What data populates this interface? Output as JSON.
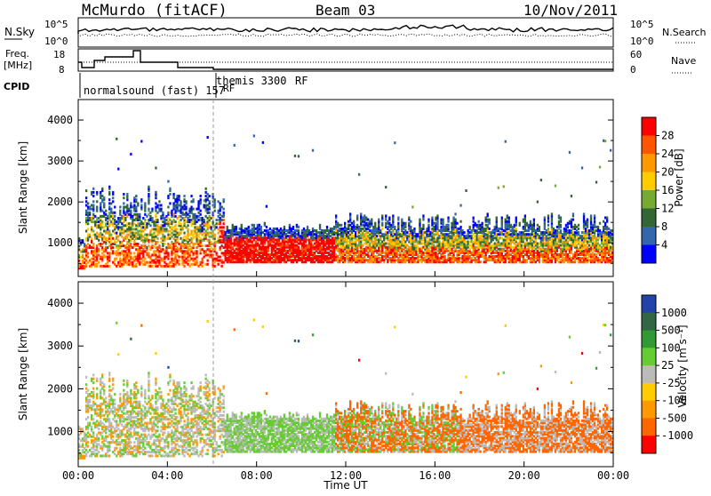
{
  "header": {
    "station": "McMurdo (fitACF)",
    "beam": "Beam 03",
    "date": "10/Nov/2011"
  },
  "top_panel": {
    "left_label": "N.Sky",
    "left_ticks": [
      "10^5",
      "10^0"
    ],
    "right_label": "N.Search",
    "right_ticks": [
      "10^5",
      "10^0"
    ]
  },
  "freq_panel": {
    "left_label_1": "Freq.",
    "left_label_2": "[MHz]",
    "left_ticks": [
      "18",
      "8"
    ],
    "right_label": "Nave",
    "right_ticks": [
      "60",
      "0"
    ]
  },
  "cpid": {
    "label": "CPID",
    "mode_1": "normalsound (fast) 157",
    "mode_1_rf": "RF",
    "mode_2": "themis 3300",
    "mode_2_rf": "RF"
  },
  "chart_data": [
    {
      "type": "heatmap",
      "name": "power",
      "ylabel": "Slant Range [km]",
      "ylim": [
        180,
        4500
      ],
      "yticks": [
        "1000",
        "2000",
        "3000",
        "4000"
      ],
      "xlim": [
        "00:00",
        "24:00"
      ],
      "colorbar": {
        "label": "Power [dB]",
        "ticks": [
          "28",
          "24",
          "20",
          "16",
          "12",
          "8",
          "4"
        ],
        "colors": [
          "#ff0000",
          "#ff5500",
          "#ff9900",
          "#ffcc00",
          "#77aa33",
          "#336633",
          "#3366aa",
          "#0000ff"
        ]
      }
    },
    {
      "type": "heatmap",
      "name": "velocity",
      "ylabel": "Slant Range [km]",
      "ylim": [
        180,
        4500
      ],
      "yticks": [
        "1000",
        "2000",
        "3000",
        "4000"
      ],
      "xlim": [
        "00:00",
        "24:00"
      ],
      "colorbar": {
        "label": "Velocity [m s⁻¹]",
        "ticks": [
          "1000",
          "500",
          "100",
          "25",
          "-25",
          "-100",
          "-500",
          "-1000"
        ],
        "colors": [
          "#2244aa",
          "#336644",
          "#339933",
          "#66cc33",
          "#bbbbbb",
          "#ffcc00",
          "#ff9900",
          "#ff6600",
          "#ff0000"
        ]
      }
    }
  ],
  "x_axis": {
    "ticks": [
      "00:00",
      "04:00",
      "08:00",
      "12:00",
      "16:00",
      "20:00",
      "00:00"
    ],
    "label": "Time UT"
  }
}
